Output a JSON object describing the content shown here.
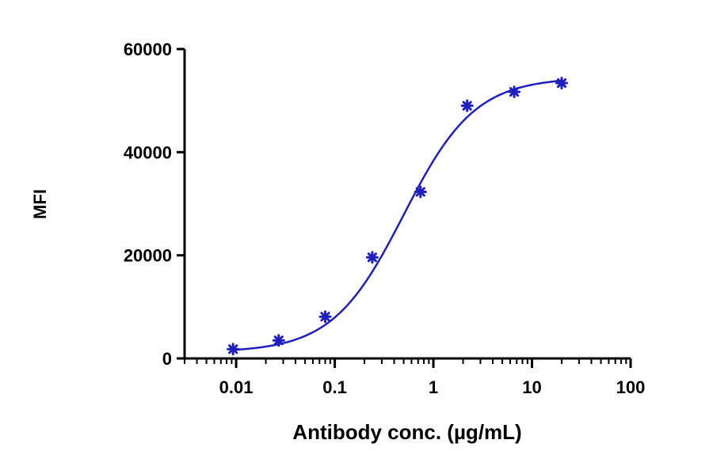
{
  "chart_data": {
    "type": "scatter",
    "xlabel": "Antibody conc. (µg/mL)",
    "ylabel": "MFI",
    "x_scale": "log",
    "xlim": [
      0.003,
      100
    ],
    "ylim": [
      0,
      60000
    ],
    "x_ticks": [
      {
        "value": 0.01,
        "label": "0.01"
      },
      {
        "value": 0.1,
        "label": "0.1"
      },
      {
        "value": 1,
        "label": "1"
      },
      {
        "value": 10,
        "label": "10"
      },
      {
        "value": 100,
        "label": "100"
      }
    ],
    "y_ticks": [
      {
        "value": 0,
        "label": "0"
      },
      {
        "value": 20000,
        "label": "20000"
      },
      {
        "value": 40000,
        "label": "40000"
      },
      {
        "value": 60000,
        "label": "60000"
      }
    ],
    "grid": false,
    "color": "#1f1fbf",
    "series": [
      {
        "marker": "asterisk",
        "x": [
          0.0093,
          0.027,
          0.08,
          0.24,
          0.74,
          2.2,
          6.6,
          20
        ],
        "y": [
          1800,
          3500,
          8100,
          19600,
          32300,
          49000,
          51700,
          53400
        ]
      }
    ],
    "fit": {
      "kind": "4PL",
      "bottom": 1200,
      "top": 54500,
      "ec50": 0.5,
      "hill": 1.2,
      "x_range": [
        0.0093,
        20
      ]
    }
  }
}
